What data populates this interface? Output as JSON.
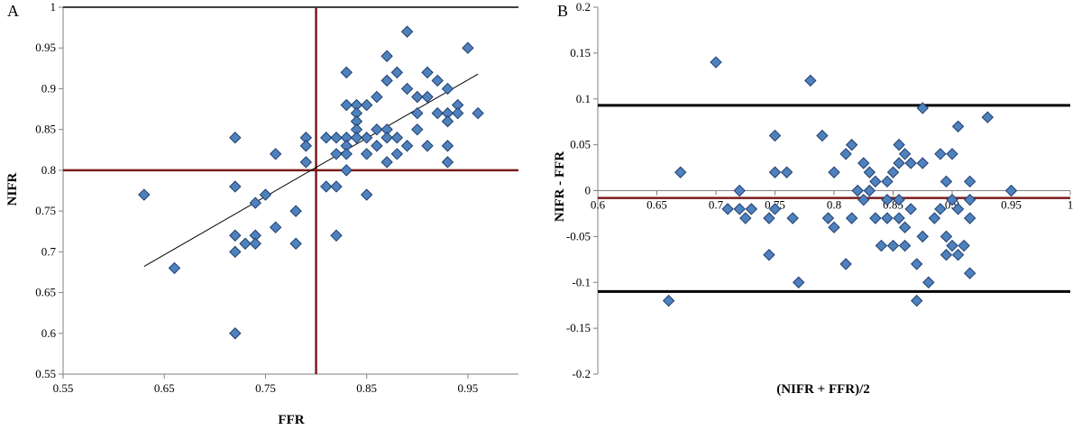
{
  "colors": {
    "marker_fill": "#4F81BD",
    "marker_stroke": "#1F3F6F",
    "ref_line": "#7B1C1C",
    "limit_line": "#000000",
    "axis": "#808080"
  },
  "chart_data": [
    {
      "panel": "A",
      "type": "scatter",
      "xlabel": "FFR",
      "ylabel": "NIFR",
      "xlim": [
        0.55,
        1.0
      ],
      "ylim": [
        0.55,
        1.0
      ],
      "x_ticks": [
        "0.55",
        "0.65",
        "0.75",
        "0.85",
        "0.95"
      ],
      "y_ticks": [
        "1",
        "0.95",
        "0.9",
        "0.85",
        "0.8",
        "0.75",
        "0.7",
        "0.65",
        "0.6",
        "0.55"
      ],
      "reference_lines": {
        "x": 0.8,
        "y": 0.8
      },
      "trendline": [
        [
          0.63,
          0.682
        ],
        [
          0.96,
          0.918
        ]
      ],
      "grid": false,
      "points": [
        [
          0.63,
          0.77
        ],
        [
          0.66,
          0.68
        ],
        [
          0.72,
          0.84
        ],
        [
          0.72,
          0.78
        ],
        [
          0.72,
          0.72
        ],
        [
          0.72,
          0.7
        ],
        [
          0.72,
          0.6
        ],
        [
          0.73,
          0.71
        ],
        [
          0.74,
          0.76
        ],
        [
          0.74,
          0.72
        ],
        [
          0.74,
          0.71
        ],
        [
          0.75,
          0.77
        ],
        [
          0.76,
          0.82
        ],
        [
          0.76,
          0.73
        ],
        [
          0.78,
          0.75
        ],
        [
          0.78,
          0.71
        ],
        [
          0.79,
          0.84
        ],
        [
          0.79,
          0.83
        ],
        [
          0.79,
          0.81
        ],
        [
          0.81,
          0.84
        ],
        [
          0.81,
          0.78
        ],
        [
          0.82,
          0.84
        ],
        [
          0.82,
          0.82
        ],
        [
          0.82,
          0.78
        ],
        [
          0.82,
          0.72
        ],
        [
          0.83,
          0.92
        ],
        [
          0.83,
          0.88
        ],
        [
          0.83,
          0.84
        ],
        [
          0.83,
          0.83
        ],
        [
          0.83,
          0.82
        ],
        [
          0.83,
          0.8
        ],
        [
          0.84,
          0.88
        ],
        [
          0.84,
          0.87
        ],
        [
          0.84,
          0.86
        ],
        [
          0.84,
          0.85
        ],
        [
          0.84,
          0.84
        ],
        [
          0.85,
          0.88
        ],
        [
          0.85,
          0.84
        ],
        [
          0.85,
          0.82
        ],
        [
          0.85,
          0.77
        ],
        [
          0.86,
          0.89
        ],
        [
          0.86,
          0.85
        ],
        [
          0.86,
          0.83
        ],
        [
          0.87,
          0.94
        ],
        [
          0.87,
          0.91
        ],
        [
          0.87,
          0.85
        ],
        [
          0.87,
          0.84
        ],
        [
          0.87,
          0.81
        ],
        [
          0.88,
          0.92
        ],
        [
          0.88,
          0.84
        ],
        [
          0.88,
          0.82
        ],
        [
          0.89,
          0.97
        ],
        [
          0.89,
          0.9
        ],
        [
          0.89,
          0.83
        ],
        [
          0.9,
          0.89
        ],
        [
          0.9,
          0.87
        ],
        [
          0.9,
          0.85
        ],
        [
          0.91,
          0.92
        ],
        [
          0.91,
          0.89
        ],
        [
          0.91,
          0.83
        ],
        [
          0.92,
          0.91
        ],
        [
          0.92,
          0.87
        ],
        [
          0.93,
          0.9
        ],
        [
          0.93,
          0.87
        ],
        [
          0.93,
          0.86
        ],
        [
          0.93,
          0.83
        ],
        [
          0.93,
          0.81
        ],
        [
          0.94,
          0.88
        ],
        [
          0.94,
          0.87
        ],
        [
          0.95,
          0.95
        ],
        [
          0.96,
          0.87
        ]
      ]
    },
    {
      "panel": "B",
      "type": "scatter",
      "xlabel": "(NIFR + FFR)/2",
      "ylabel": "NIFR - FFR",
      "xlim": [
        0.6,
        1.0
      ],
      "ylim": [
        -0.2,
        0.2
      ],
      "x_ticks": [
        "0.6",
        "0.65",
        "0.7",
        "0.75",
        "0.8",
        "0.85",
        "0.9",
        "0.95",
        "1"
      ],
      "y_ticks": [
        "0.2",
        "0.15",
        "0.1",
        "0.05",
        "0",
        "-0.05",
        "-0.1",
        "-0.15",
        "-0.2"
      ],
      "mean_line": -0.008,
      "limits_of_agreement": [
        0.093,
        -0.11
      ],
      "grid": false,
      "points": [
        [
          0.66,
          -0.12
        ],
        [
          0.67,
          0.02
        ],
        [
          0.7,
          0.14
        ],
        [
          0.71,
          -0.02
        ],
        [
          0.72,
          0.0
        ],
        [
          0.72,
          -0.02
        ],
        [
          0.725,
          -0.03
        ],
        [
          0.73,
          -0.02
        ],
        [
          0.745,
          -0.07
        ],
        [
          0.745,
          -0.03
        ],
        [
          0.75,
          0.06
        ],
        [
          0.75,
          0.02
        ],
        [
          0.75,
          -0.02
        ],
        [
          0.76,
          0.02
        ],
        [
          0.765,
          -0.03
        ],
        [
          0.77,
          -0.1
        ],
        [
          0.78,
          0.12
        ],
        [
          0.79,
          0.06
        ],
        [
          0.795,
          -0.03
        ],
        [
          0.8,
          0.02
        ],
        [
          0.8,
          -0.04
        ],
        [
          0.81,
          0.04
        ],
        [
          0.81,
          -0.08
        ],
        [
          0.815,
          0.05
        ],
        [
          0.815,
          -0.03
        ],
        [
          0.82,
          0.0
        ],
        [
          0.825,
          0.03
        ],
        [
          0.825,
          -0.01
        ],
        [
          0.83,
          0.02
        ],
        [
          0.83,
          0.0
        ],
        [
          0.835,
          0.01
        ],
        [
          0.835,
          -0.03
        ],
        [
          0.84,
          -0.06
        ],
        [
          0.845,
          0.01
        ],
        [
          0.845,
          -0.01
        ],
        [
          0.845,
          -0.03
        ],
        [
          0.85,
          0.02
        ],
        [
          0.85,
          -0.06
        ],
        [
          0.855,
          0.05
        ],
        [
          0.855,
          0.03
        ],
        [
          0.855,
          -0.01
        ],
        [
          0.855,
          -0.03
        ],
        [
          0.86,
          0.04
        ],
        [
          0.86,
          -0.04
        ],
        [
          0.86,
          -0.06
        ],
        [
          0.865,
          0.03
        ],
        [
          0.865,
          -0.02
        ],
        [
          0.87,
          -0.08
        ],
        [
          0.87,
          -0.12
        ],
        [
          0.875,
          0.09
        ],
        [
          0.875,
          0.03
        ],
        [
          0.875,
          -0.05
        ],
        [
          0.88,
          -0.1
        ],
        [
          0.885,
          -0.03
        ],
        [
          0.89,
          0.04
        ],
        [
          0.89,
          -0.02
        ],
        [
          0.895,
          0.01
        ],
        [
          0.895,
          -0.05
        ],
        [
          0.895,
          -0.07
        ],
        [
          0.9,
          0.04
        ],
        [
          0.9,
          -0.01
        ],
        [
          0.9,
          -0.06
        ],
        [
          0.905,
          0.07
        ],
        [
          0.905,
          -0.02
        ],
        [
          0.905,
          -0.07
        ],
        [
          0.91,
          -0.06
        ],
        [
          0.915,
          0.01
        ],
        [
          0.915,
          -0.01
        ],
        [
          0.915,
          -0.03
        ],
        [
          0.915,
          -0.09
        ],
        [
          0.93,
          0.08
        ],
        [
          0.95,
          0.0
        ]
      ]
    }
  ],
  "panels": {
    "a": {
      "letter": "A"
    },
    "b": {
      "letter": "B"
    }
  }
}
